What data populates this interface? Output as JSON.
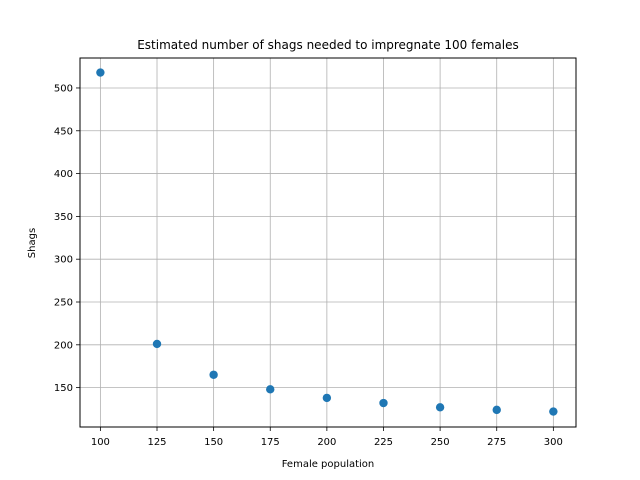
{
  "chart_data": {
    "type": "scatter",
    "title": "Estimated number of shags needed to impregnate 100 females",
    "xlabel": "Female population",
    "ylabel": "Shags",
    "x": [
      100,
      125,
      150,
      175,
      200,
      225,
      250,
      275,
      300
    ],
    "y": [
      518,
      201,
      165,
      148,
      138,
      132,
      127,
      124,
      122
    ],
    "xlim": [
      91,
      310
    ],
    "ylim": [
      104,
      535
    ],
    "xticks": [
      100,
      125,
      150,
      175,
      200,
      225,
      250,
      275,
      300
    ],
    "yticks": [
      150,
      200,
      250,
      300,
      350,
      400,
      450,
      500
    ],
    "grid": true,
    "marker_color": "#1f77b4",
    "grid_color": "#b0b0b0"
  }
}
